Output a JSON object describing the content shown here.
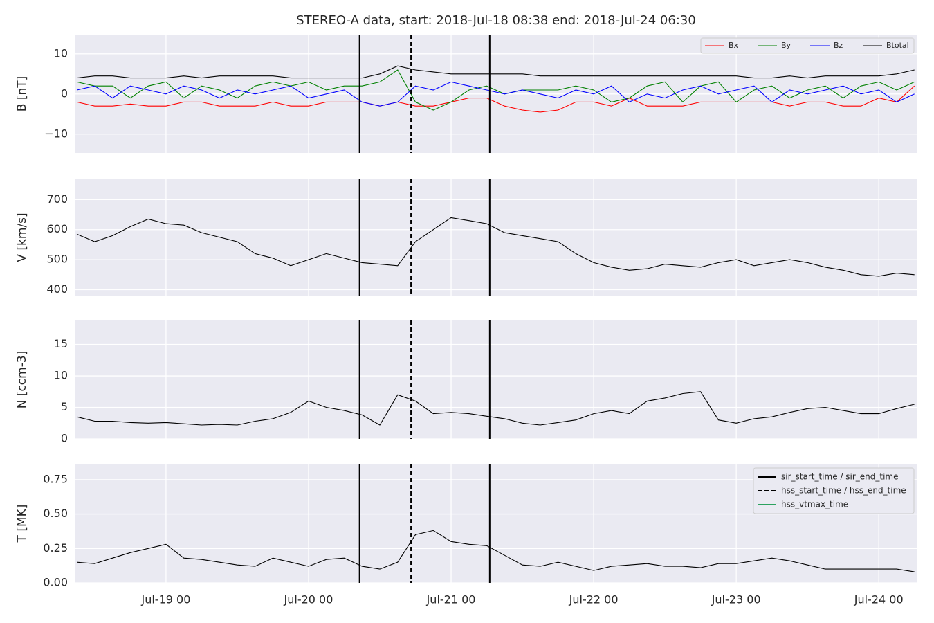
{
  "chart_data": [
    {
      "type": "line",
      "title": "STEREO-A data, start: 2018-Jul-18 08:38  end: 2018-Jul-24 06:30",
      "ylabel": "B [nT]",
      "x": [
        "2018-07-18 09:00",
        "2018-07-18 12:00",
        "2018-07-18 15:00",
        "2018-07-18 18:00",
        "2018-07-18 21:00",
        "2018-07-19 00:00",
        "2018-07-19 03:00",
        "2018-07-19 06:00",
        "2018-07-19 09:00",
        "2018-07-19 12:00",
        "2018-07-19 15:00",
        "2018-07-19 18:00",
        "2018-07-19 21:00",
        "2018-07-20 00:00",
        "2018-07-20 03:00",
        "2018-07-20 06:00",
        "2018-07-20 09:00",
        "2018-07-20 12:00",
        "2018-07-20 15:00",
        "2018-07-20 18:00",
        "2018-07-20 21:00",
        "2018-07-21 00:00",
        "2018-07-21 03:00",
        "2018-07-21 06:00",
        "2018-07-21 09:00",
        "2018-07-21 12:00",
        "2018-07-21 15:00",
        "2018-07-21 18:00",
        "2018-07-21 21:00",
        "2018-07-22 00:00",
        "2018-07-22 03:00",
        "2018-07-22 06:00",
        "2018-07-22 09:00",
        "2018-07-22 12:00",
        "2018-07-22 15:00",
        "2018-07-22 18:00",
        "2018-07-22 21:00",
        "2018-07-23 00:00",
        "2018-07-23 03:00",
        "2018-07-23 06:00",
        "2018-07-23 09:00",
        "2018-07-23 12:00",
        "2018-07-23 15:00",
        "2018-07-23 18:00",
        "2018-07-23 21:00",
        "2018-07-24 00:00",
        "2018-07-24 03:00",
        "2018-07-24 06:00"
      ],
      "series": [
        {
          "name": "Bx",
          "color": "#ff0000",
          "values": [
            -2,
            -3,
            -3,
            -2.5,
            -3,
            -3,
            -2,
            -2,
            -3,
            -3,
            -3,
            -2,
            -3,
            -3,
            -2,
            -2,
            -2,
            -3,
            -2,
            -3,
            -3,
            -2,
            -1,
            -1,
            -3,
            -4,
            -4.5,
            -4,
            -2,
            -2,
            -3,
            -1,
            -3,
            -3,
            -3,
            -2,
            -2,
            -2,
            -2,
            -2,
            -3,
            -2,
            -2,
            -3,
            -3,
            -1,
            -2,
            2
          ]
        },
        {
          "name": "By",
          "color": "#008000",
          "values": [
            3,
            2,
            2,
            -1,
            2,
            3,
            -1,
            2,
            1,
            -1,
            2,
            3,
            2,
            3,
            1,
            2,
            2,
            3,
            6,
            -2,
            -4,
            -2,
            1,
            2,
            0,
            1,
            1,
            1,
            2,
            1,
            -2,
            -1,
            2,
            3,
            -2,
            2,
            3,
            -2,
            1,
            2,
            -1,
            1,
            2,
            -1,
            2,
            3,
            1,
            3
          ]
        },
        {
          "name": "Bz",
          "color": "#0000ff",
          "values": [
            1,
            2,
            -1,
            2,
            1,
            0,
            2,
            1,
            -1,
            1,
            0,
            1,
            2,
            -1,
            0,
            1,
            -2,
            -3,
            -2,
            2,
            1,
            3,
            2,
            1,
            0,
            1,
            0,
            -1,
            1,
            0,
            2,
            -2,
            0,
            -1,
            1,
            2,
            0,
            1,
            2,
            -2,
            1,
            0,
            1,
            2,
            0,
            1,
            -2,
            0
          ]
        },
        {
          "name": "Btotal",
          "color": "#000000",
          "values": [
            4,
            4.5,
            4.5,
            4,
            4,
            4,
            4.5,
            4,
            4.5,
            4.5,
            4.5,
            4.5,
            4,
            4,
            4,
            4,
            4,
            5,
            7,
            6,
            5.5,
            5,
            5,
            5,
            5,
            5,
            4.5,
            4.5,
            4.5,
            4.5,
            4.5,
            4.5,
            4.5,
            4.5,
            4.5,
            4.5,
            4.5,
            4.5,
            4,
            4,
            4.5,
            4,
            4.5,
            4.5,
            4.5,
            4.5,
            5,
            6
          ]
        }
      ],
      "ylim": [
        -14.7,
        14.8
      ],
      "yticks": [
        {
          "value": -10,
          "label": "−10"
        },
        0,
        10
      ],
      "grid": true,
      "legend_loc": "upper right"
    },
    {
      "type": "line",
      "ylabel": "V [km/s]",
      "x": [
        "2018-07-18 09:00",
        "2018-07-18 12:00",
        "2018-07-18 15:00",
        "2018-07-18 18:00",
        "2018-07-18 21:00",
        "2018-07-19 00:00",
        "2018-07-19 03:00",
        "2018-07-19 06:00",
        "2018-07-19 09:00",
        "2018-07-19 12:00",
        "2018-07-19 15:00",
        "2018-07-19 18:00",
        "2018-07-19 21:00",
        "2018-07-20 00:00",
        "2018-07-20 03:00",
        "2018-07-20 06:00",
        "2018-07-20 09:00",
        "2018-07-20 12:00",
        "2018-07-20 15:00",
        "2018-07-20 18:00",
        "2018-07-20 21:00",
        "2018-07-21 00:00",
        "2018-07-21 03:00",
        "2018-07-21 06:00",
        "2018-07-21 09:00",
        "2018-07-21 12:00",
        "2018-07-21 15:00",
        "2018-07-21 18:00",
        "2018-07-21 21:00",
        "2018-07-22 00:00",
        "2018-07-22 03:00",
        "2018-07-22 06:00",
        "2018-07-22 09:00",
        "2018-07-22 12:00",
        "2018-07-22 15:00",
        "2018-07-22 18:00",
        "2018-07-22 21:00",
        "2018-07-23 00:00",
        "2018-07-23 03:00",
        "2018-07-23 06:00",
        "2018-07-23 09:00",
        "2018-07-23 12:00",
        "2018-07-23 15:00",
        "2018-07-23 18:00",
        "2018-07-23 21:00",
        "2018-07-24 00:00",
        "2018-07-24 03:00",
        "2018-07-24 06:00"
      ],
      "series": [
        {
          "color": "#000000",
          "values": [
            585,
            560,
            580,
            610,
            635,
            620,
            615,
            590,
            575,
            560,
            520,
            505,
            480,
            500,
            520,
            505,
            490,
            485,
            480,
            560,
            600,
            640,
            630,
            620,
            590,
            580,
            570,
            560,
            520,
            490,
            475,
            465,
            470,
            485,
            480,
            475,
            490,
            500,
            480,
            490,
            500,
            490,
            475,
            465,
            450,
            445,
            455,
            450
          ]
        }
      ],
      "ylim": [
        378,
        770
      ],
      "yticks": [
        400,
        500,
        600,
        700
      ],
      "grid": true
    },
    {
      "type": "line",
      "ylabel": "N [ccm-3]",
      "x": [
        "2018-07-18 09:00",
        "2018-07-18 12:00",
        "2018-07-18 15:00",
        "2018-07-18 18:00",
        "2018-07-18 21:00",
        "2018-07-19 00:00",
        "2018-07-19 03:00",
        "2018-07-19 06:00",
        "2018-07-19 09:00",
        "2018-07-19 12:00",
        "2018-07-19 15:00",
        "2018-07-19 18:00",
        "2018-07-19 21:00",
        "2018-07-20 00:00",
        "2018-07-20 03:00",
        "2018-07-20 06:00",
        "2018-07-20 09:00",
        "2018-07-20 12:00",
        "2018-07-20 15:00",
        "2018-07-20 18:00",
        "2018-07-20 21:00",
        "2018-07-21 00:00",
        "2018-07-21 03:00",
        "2018-07-21 06:00",
        "2018-07-21 09:00",
        "2018-07-21 12:00",
        "2018-07-21 15:00",
        "2018-07-21 18:00",
        "2018-07-21 21:00",
        "2018-07-22 00:00",
        "2018-07-22 03:00",
        "2018-07-22 06:00",
        "2018-07-22 09:00",
        "2018-07-22 12:00",
        "2018-07-22 15:00",
        "2018-07-22 18:00",
        "2018-07-22 21:00",
        "2018-07-23 00:00",
        "2018-07-23 03:00",
        "2018-07-23 06:00",
        "2018-07-23 09:00",
        "2018-07-23 12:00",
        "2018-07-23 15:00",
        "2018-07-23 18:00",
        "2018-07-23 21:00",
        "2018-07-24 00:00",
        "2018-07-24 03:00",
        "2018-07-24 06:00"
      ],
      "series": [
        {
          "color": "#000000",
          "values": [
            3.5,
            2.8,
            2.8,
            2.6,
            2.5,
            2.6,
            2.4,
            2.2,
            2.3,
            2.2,
            2.8,
            3.2,
            4.2,
            6,
            5,
            4.5,
            3.8,
            2.2,
            7,
            6,
            4,
            4.2,
            4,
            3.6,
            3.2,
            2.5,
            2.2,
            2.6,
            3,
            4,
            4.5,
            4,
            6,
            6.5,
            7.2,
            7.5,
            3,
            2.5,
            3.2,
            3.5,
            4.2,
            4.8,
            5,
            4.5,
            4,
            4,
            4.8,
            5.5
          ]
        }
      ],
      "ylim": [
        0,
        18.8
      ],
      "yticks": [
        0,
        5,
        10,
        15
      ],
      "grid": true
    },
    {
      "type": "line",
      "ylabel": "T [MK]",
      "x": [
        "2018-07-18 09:00",
        "2018-07-18 12:00",
        "2018-07-18 15:00",
        "2018-07-18 18:00",
        "2018-07-18 21:00",
        "2018-07-19 00:00",
        "2018-07-19 03:00",
        "2018-07-19 06:00",
        "2018-07-19 09:00",
        "2018-07-19 12:00",
        "2018-07-19 15:00",
        "2018-07-19 18:00",
        "2018-07-19 21:00",
        "2018-07-20 00:00",
        "2018-07-20 03:00",
        "2018-07-20 06:00",
        "2018-07-20 09:00",
        "2018-07-20 12:00",
        "2018-07-20 15:00",
        "2018-07-20 18:00",
        "2018-07-20 21:00",
        "2018-07-21 00:00",
        "2018-07-21 03:00",
        "2018-07-21 06:00",
        "2018-07-21 09:00",
        "2018-07-21 12:00",
        "2018-07-21 15:00",
        "2018-07-21 18:00",
        "2018-07-21 21:00",
        "2018-07-22 00:00",
        "2018-07-22 03:00",
        "2018-07-22 06:00",
        "2018-07-22 09:00",
        "2018-07-22 12:00",
        "2018-07-22 15:00",
        "2018-07-22 18:00",
        "2018-07-22 21:00",
        "2018-07-23 00:00",
        "2018-07-23 03:00",
        "2018-07-23 06:00",
        "2018-07-23 09:00",
        "2018-07-23 12:00",
        "2018-07-23 15:00",
        "2018-07-23 18:00",
        "2018-07-23 21:00",
        "2018-07-24 00:00",
        "2018-07-24 03:00",
        "2018-07-24 06:00"
      ],
      "series": [
        {
          "color": "#000000",
          "values": [
            0.15,
            0.14,
            0.18,
            0.22,
            0.25,
            0.28,
            0.18,
            0.17,
            0.15,
            0.13,
            0.12,
            0.18,
            0.15,
            0.12,
            0.17,
            0.18,
            0.12,
            0.1,
            0.15,
            0.35,
            0.38,
            0.3,
            0.28,
            0.27,
            0.2,
            0.13,
            0.12,
            0.15,
            0.12,
            0.09,
            0.12,
            0.13,
            0.14,
            0.12,
            0.12,
            0.11,
            0.14,
            0.14,
            0.16,
            0.18,
            0.16,
            0.13,
            0.1,
            0.1,
            0.1,
            0.1,
            0.1,
            0.08
          ]
        }
      ],
      "ylim": [
        0,
        0.865
      ],
      "yticks": [
        {
          "value": 0,
          "label": "0.00"
        },
        0.25,
        {
          "value": 0.5,
          "label": "0.50"
        },
        0.75
      ],
      "grid": true,
      "xlim": [
        "2018-07-18 08:38",
        "2018-07-24 06:30"
      ],
      "xticks": [
        {
          "value": "2018-07-19 00:00",
          "label": "Jul-19 00"
        },
        {
          "value": "2018-07-20 00:00",
          "label": "Jul-20 00"
        },
        {
          "value": "2018-07-21 00:00",
          "label": "Jul-21 00"
        },
        {
          "value": "2018-07-22 00:00",
          "label": "Jul-22 00"
        },
        {
          "value": "2018-07-23 00:00",
          "label": "Jul-23 00"
        },
        {
          "value": "2018-07-24 00:00",
          "label": "Jul-24 00"
        }
      ],
      "vlines": [
        {
          "x": "2018-07-20 08:35",
          "dash": "solid"
        },
        {
          "x": "2018-07-20 17:15",
          "dash": "dashed"
        },
        {
          "x": "2018-07-21 06:30",
          "dash": "solid"
        }
      ],
      "legend_loc": "upper right",
      "legend": [
        {
          "name": "sir_start_time / sir_end_time",
          "color": "#000000",
          "dash": "solid"
        },
        {
          "name": "hss_start_time / hss_end_time",
          "color": "#000000",
          "dash": "dashed"
        },
        {
          "name": "hss_vtmax_time",
          "color": "#2ca25f",
          "dash": "solid"
        }
      ]
    }
  ]
}
